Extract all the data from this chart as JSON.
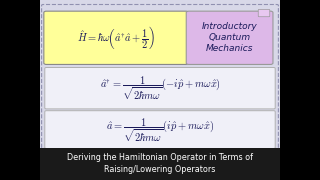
{
  "bg_color": "#000000",
  "content_bg": "#d8d8e8",
  "outer_border_color": "#9090b0",
  "title_box_bg": "#1a1a1a",
  "title_box_text_color": "#ffffff",
  "title_text": "Deriving the Hamiltonian Operator in Terms of\nRaising/Lowering Operators",
  "top_formula_bg": "#ffff99",
  "top_formula_border": "#888888",
  "top_formula": "$\\hat{H} = \\hbar\\omega\\!\\left(\\hat{a}^{\\dagger}\\hat{a} + \\dfrac{1}{2}\\right)$",
  "scroll_bg": "#ddb8e8",
  "scroll_border": "#999999",
  "scroll_text": "Introductory\nQuantum\nMechanics",
  "mid_formula_bg": "#f0f0f8",
  "mid_formula_border": "#b0b0b0",
  "mid_formula": "$\\hat{a}^{\\dagger} = \\dfrac{1}{\\sqrt{2\\hbar m\\omega}}(-i\\hat{p} + m\\omega\\hat{x})$",
  "bot_formula_bg": "#f0f0f8",
  "bot_formula_border": "#b0b0b0",
  "bot_formula": "$\\hat{a} = \\dfrac{1}{\\sqrt{2\\hbar m\\omega}}(i\\hat{p} + m\\omega\\hat{x})$",
  "text_color": "#1a1a5a",
  "title_fontsize": 5.8,
  "formula_fontsize": 7.5,
  "scroll_fontsize": 6.5,
  "left_bar_width": 0.125,
  "right_bar_width": 0.125
}
